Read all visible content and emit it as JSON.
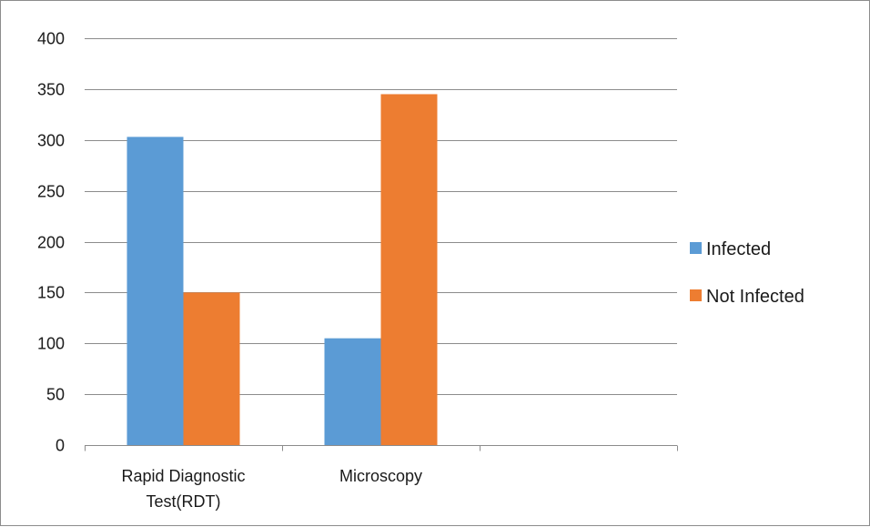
{
  "chart_data": {
    "type": "bar",
    "title": "",
    "xlabel": "",
    "ylabel": "",
    "categories": [
      [
        "Rapid Diagnostic",
        "Test(RDT)"
      ],
      [
        "Microscopy"
      ],
      [
        ""
      ]
    ],
    "series": [
      {
        "name": "Infected",
        "color": "#5B9BD5",
        "values": [
          303,
          105,
          null
        ]
      },
      {
        "name": "Not Infected",
        "color": "#ED7D31",
        "values": [
          150,
          345,
          null
        ]
      }
    ],
    "ylim": [
      0,
      400
    ],
    "yticks": [
      0,
      50,
      100,
      150,
      200,
      250,
      300,
      350,
      400
    ],
    "grid": true,
    "legend_position": "right"
  }
}
